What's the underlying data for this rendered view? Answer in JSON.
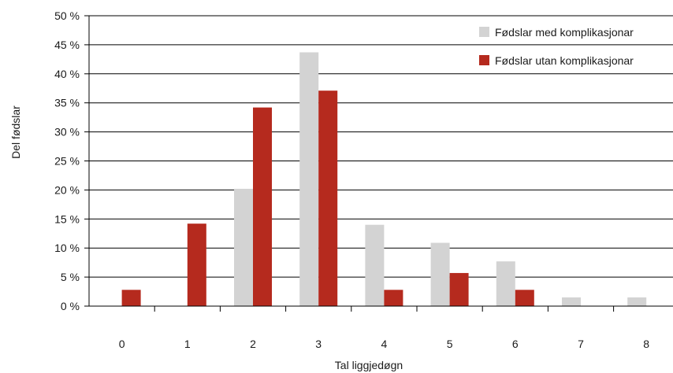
{
  "chart_data": {
    "type": "bar",
    "title": "",
    "xlabel": "Tal liggjedøgn",
    "ylabel": "Del fødslar",
    "categories": [
      "0",
      "1",
      "2",
      "3",
      "4",
      "5",
      "6",
      "7",
      "8"
    ],
    "y_ticks": [
      "0 %",
      "5 %",
      "10 %",
      "15 %",
      "20 %",
      "25 %",
      "30 %",
      "35 %",
      "40 %",
      "45 %",
      "50 %"
    ],
    "ylim": [
      0,
      50
    ],
    "grid": true,
    "legend_position": "top-right",
    "series": [
      {
        "name": "Fødslar med komplikasjonar",
        "color": "#d3d3d3",
        "values": [
          0,
          0,
          20.2,
          43.7,
          14.0,
          10.9,
          7.7,
          1.5,
          1.5
        ]
      },
      {
        "name": "Fødslar utan komplikasjonar",
        "color": "#b52a1e",
        "values": [
          2.8,
          14.2,
          34.2,
          37.1,
          2.8,
          5.7,
          2.8,
          0,
          0
        ]
      }
    ]
  }
}
